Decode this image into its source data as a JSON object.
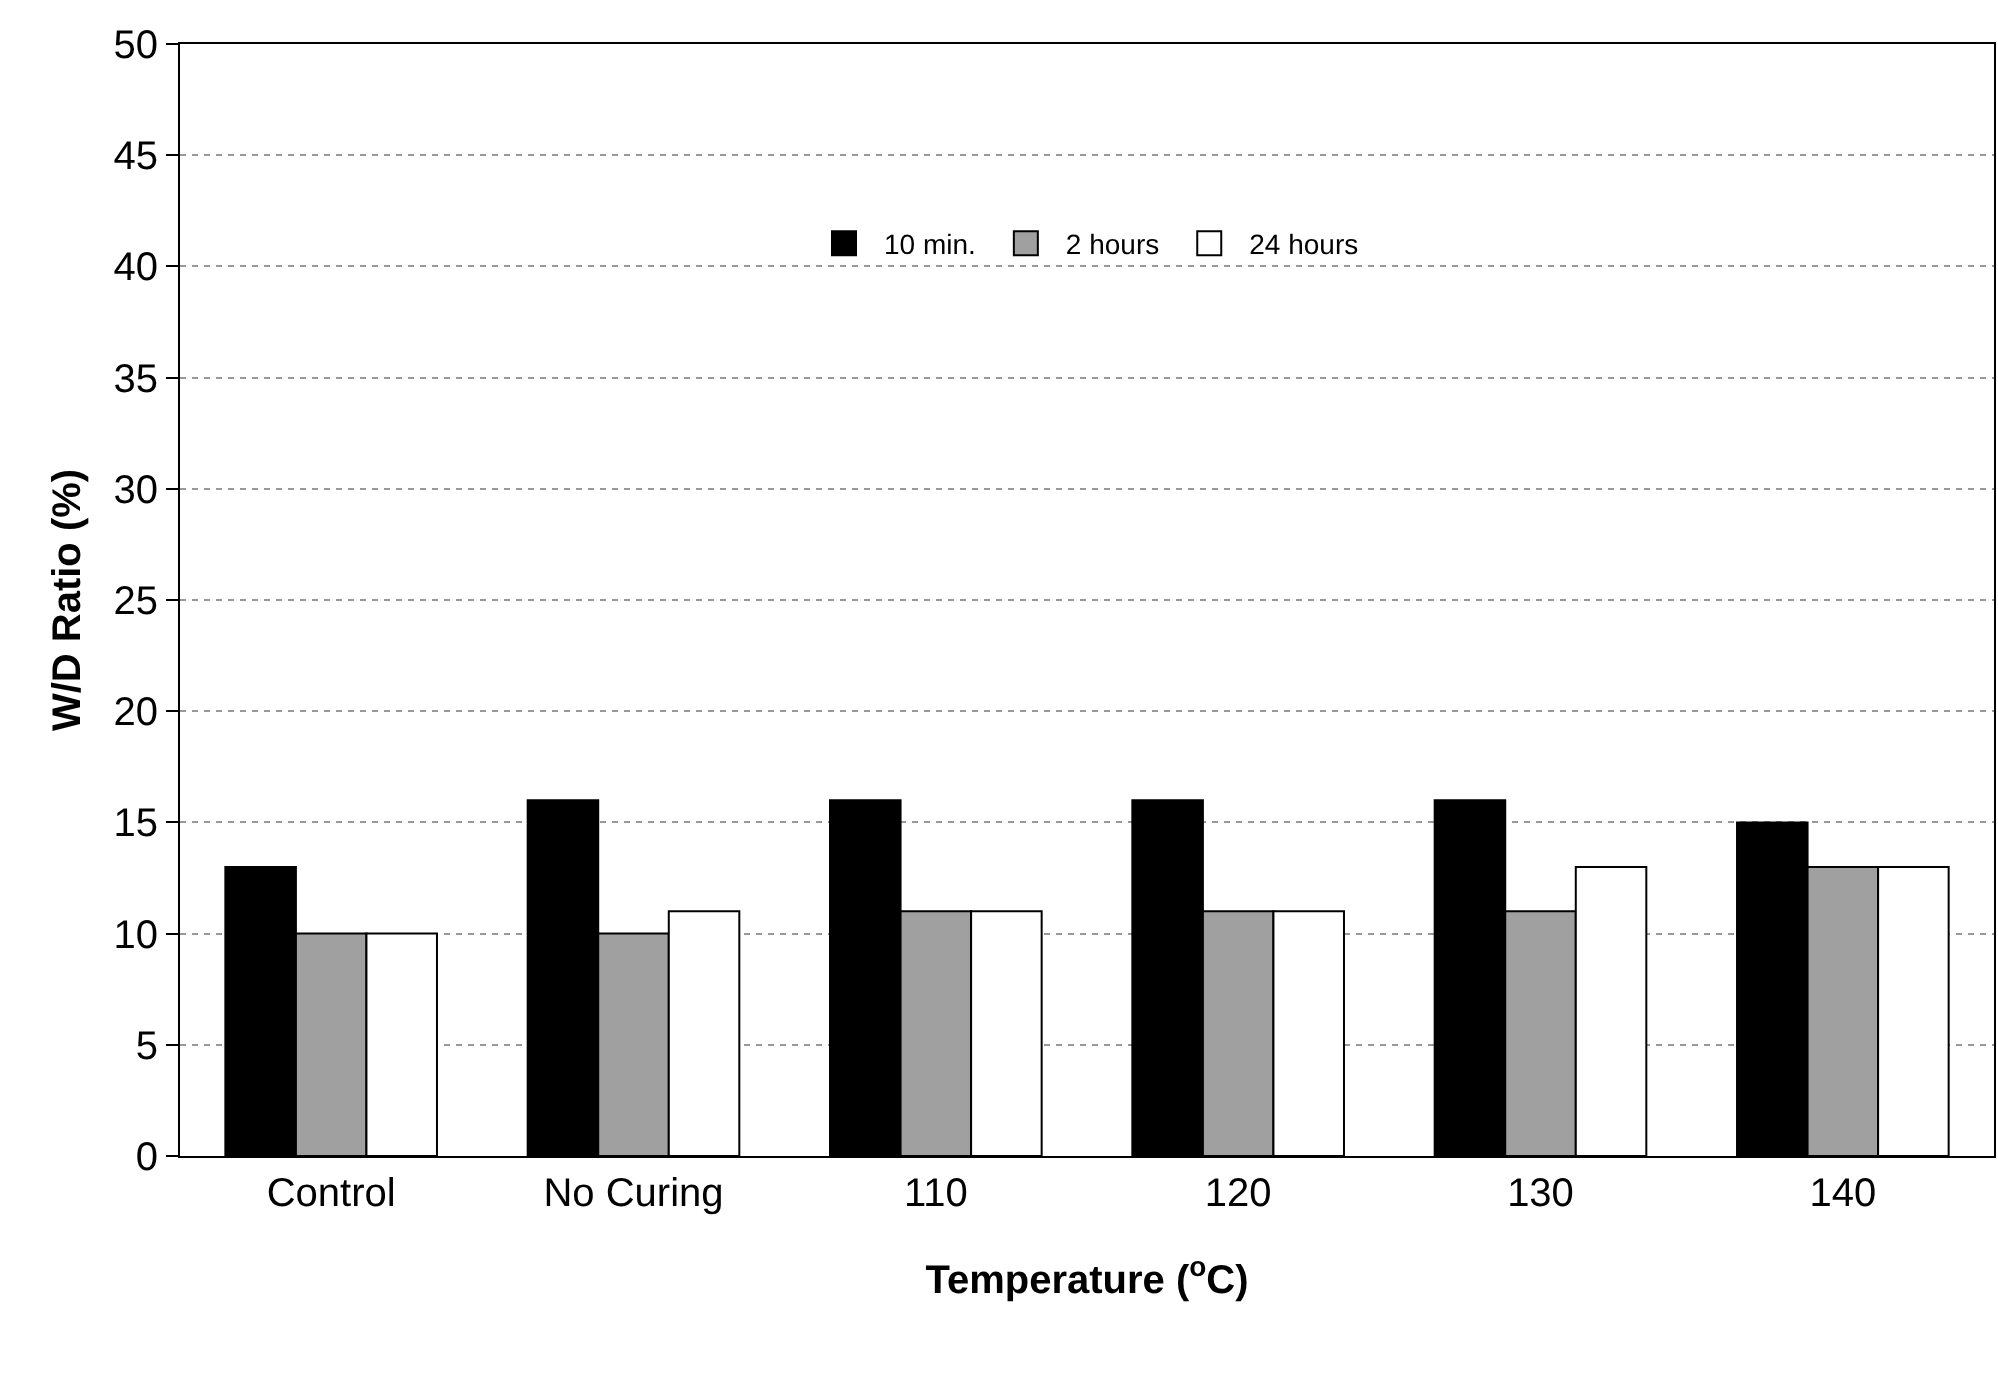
{
  "chart_data": {
    "type": "bar",
    "xlabel": "Temperature ($^{o}$C)",
    "ylabel": "W/D Ratio (%)",
    "categories": [
      "Control",
      "No Curing",
      "110",
      "120",
      "130",
      "140"
    ],
    "series": [
      {
        "name": "10 min.",
        "color": "#000000",
        "values": [
          13,
          16,
          16,
          16,
          16,
          15
        ]
      },
      {
        "name": "2 hours",
        "color": "#a0a0a0",
        "values": [
          10,
          10,
          11,
          11,
          11,
          13
        ]
      },
      {
        "name": "24 hours",
        "color": "#ffffff",
        "values": [
          10,
          11,
          11,
          11,
          13,
          13
        ]
      }
    ],
    "ylim": [
      0,
      50
    ],
    "yticks": [
      0,
      5,
      10,
      15,
      20,
      25,
      30,
      35,
      40,
      45,
      50
    ],
    "grid": "y",
    "legend": "top"
  }
}
